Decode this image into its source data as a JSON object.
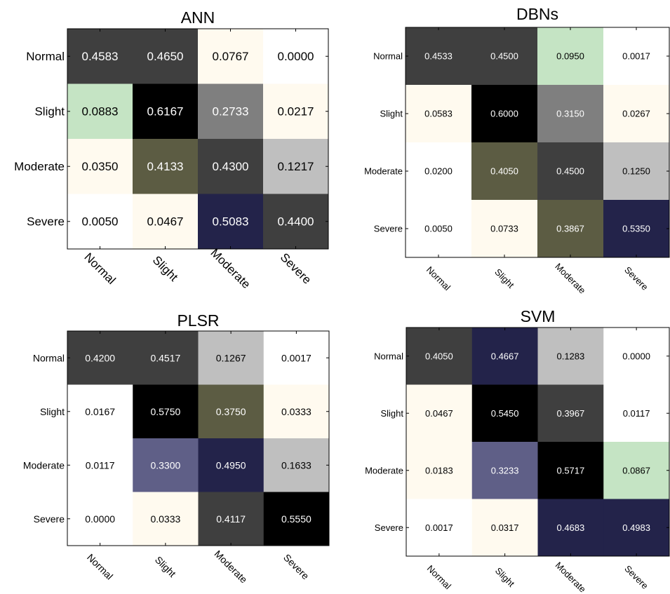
{
  "chart_data": [
    {
      "type": "heatmap",
      "title": "ANN",
      "rows": [
        "Normal",
        "Slight",
        "Moderate",
        "Severe"
      ],
      "cols": [
        "Normal",
        "Slight",
        "Moderate",
        "Severe"
      ],
      "values": [
        [
          "0.4583",
          "0.4650",
          "0.0767",
          "0.0000"
        ],
        [
          "0.0883",
          "0.6167",
          "0.2733",
          "0.0217"
        ],
        [
          "0.0350",
          "0.4133",
          "0.4300",
          "0.1217"
        ],
        [
          "0.0050",
          "0.0467",
          "0.5083",
          "0.4400"
        ]
      ],
      "colors": [
        [
          "#3f3f3f",
          "#3f3f3f",
          "#fffaef",
          "#ffffff"
        ],
        [
          "#c5e4c4",
          "#000000",
          "#7f7f7f",
          "#fffaef"
        ],
        [
          "#fffaef",
          "#5c5c43",
          "#3f3f3f",
          "#bfbfbf"
        ],
        [
          "#ffffff",
          "#fffaef",
          "#23234a",
          "#3f3f3f"
        ]
      ]
    },
    {
      "type": "heatmap",
      "title": "DBNs",
      "rows": [
        "Normal",
        "Slight",
        "Moderate",
        "Severe"
      ],
      "cols": [
        "Normal",
        "Slight",
        "Moderate",
        "Severe"
      ],
      "values": [
        [
          "0.4533",
          "0.4500",
          "0.0950",
          "0.0017"
        ],
        [
          "0.0583",
          "0.6000",
          "0.3150",
          "0.0267"
        ],
        [
          "0.0200",
          "0.4050",
          "0.4500",
          "0.1250"
        ],
        [
          "0.0050",
          "0.0733",
          "0.3867",
          "0.5350"
        ]
      ],
      "colors": [
        [
          "#3f3f3f",
          "#3f3f3f",
          "#c5e4c4",
          "#ffffff"
        ],
        [
          "#fffaef",
          "#000000",
          "#7f7f7f",
          "#fffaef"
        ],
        [
          "#ffffff",
          "#5c5c43",
          "#3f3f3f",
          "#bfbfbf"
        ],
        [
          "#ffffff",
          "#fffaef",
          "#5c5c43",
          "#23234a"
        ]
      ]
    },
    {
      "type": "heatmap",
      "title": "PLSR",
      "rows": [
        "Normal",
        "Slight",
        "Moderate",
        "Severe"
      ],
      "cols": [
        "Normal",
        "Slight",
        "Moderate",
        "Severe"
      ],
      "values": [
        [
          "0.4200",
          "0.4517",
          "0.1267",
          "0.0017"
        ],
        [
          "0.0167",
          "0.5750",
          "0.3750",
          "0.0333"
        ],
        [
          "0.0117",
          "0.3300",
          "0.4950",
          "0.1633"
        ],
        [
          "0.0000",
          "0.0333",
          "0.4117",
          "0.5550"
        ]
      ],
      "colors": [
        [
          "#3f3f3f",
          "#3f3f3f",
          "#bfbfbf",
          "#ffffff"
        ],
        [
          "#ffffff",
          "#000000",
          "#5c5c43",
          "#fffaef"
        ],
        [
          "#ffffff",
          "#5f5f87",
          "#23234a",
          "#bfbfbf"
        ],
        [
          "#ffffff",
          "#fffaef",
          "#3f3f3f",
          "#000000"
        ]
      ]
    },
    {
      "type": "heatmap",
      "title": "SVM",
      "rows": [
        "Normal",
        "Slight",
        "Moderate",
        "Severe"
      ],
      "cols": [
        "Normal",
        "Slight",
        "Moderate",
        "Severe"
      ],
      "values": [
        [
          "0.4050",
          "0.4667",
          "0.1283",
          "0.0000"
        ],
        [
          "0.0467",
          "0.5450",
          "0.3967",
          "0.0117"
        ],
        [
          "0.0183",
          "0.3233",
          "0.5717",
          "0.0867"
        ],
        [
          "0.0017",
          "0.0317",
          "0.4683",
          "0.4983"
        ]
      ],
      "colors": [
        [
          "#3f3f3f",
          "#23234a",
          "#bfbfbf",
          "#ffffff"
        ],
        [
          "#fffaef",
          "#000000",
          "#3f3f3f",
          "#ffffff"
        ],
        [
          "#fffaef",
          "#5f5f87",
          "#000000",
          "#c5e4c4"
        ],
        [
          "#ffffff",
          "#fffaef",
          "#23234a",
          "#23234a"
        ]
      ]
    }
  ]
}
